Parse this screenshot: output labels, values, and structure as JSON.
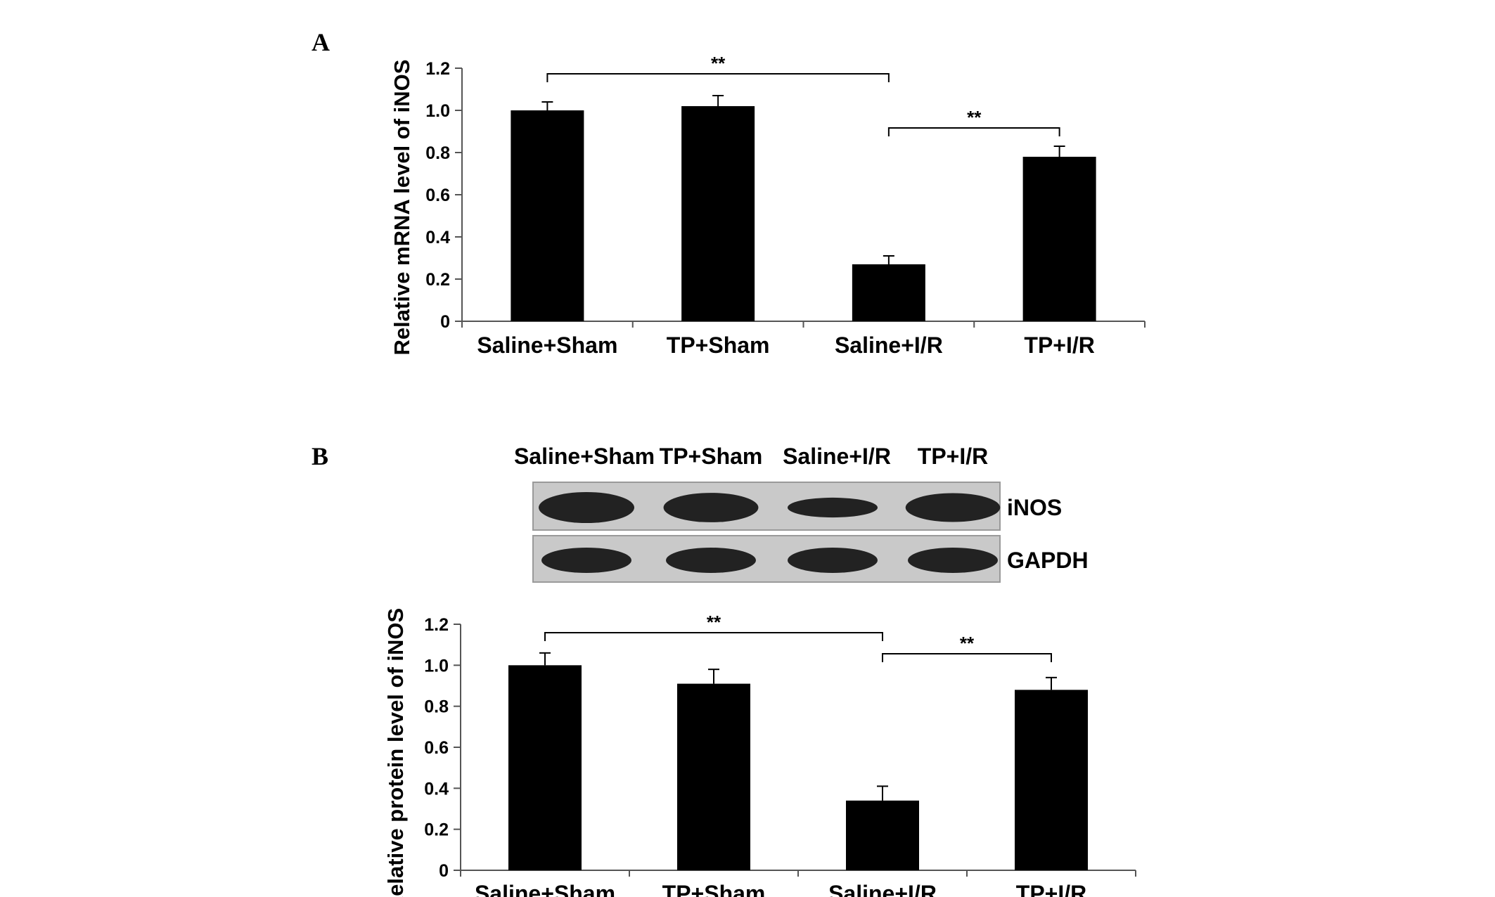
{
  "chart_data": [
    {
      "panel": "A",
      "type": "bar",
      "ylabel": "Relative mRNA level of iNOS",
      "xlabel": "",
      "ylim": [
        0,
        1.2
      ],
      "yticks": [
        "0",
        "0.2",
        "0.4",
        "0.6",
        "0.8",
        "1.0",
        "1.2"
      ],
      "categories": [
        "Saline+Sham",
        "TP+Sham",
        "Saline+I/R",
        "TP+I/R"
      ],
      "values": [
        1.0,
        1.02,
        0.27,
        0.78
      ],
      "errors": [
        0.04,
        0.05,
        0.04,
        0.05
      ],
      "bar_color": "#000000",
      "grid": false,
      "significance": [
        {
          "from": 0,
          "to": 2,
          "label": "**"
        },
        {
          "from": 2,
          "to": 3,
          "label": "**"
        }
      ]
    },
    {
      "panel": "B",
      "type": "bar",
      "ylabel": "Relative protein level of iNOS",
      "xlabel": "",
      "ylim": [
        0,
        1.2
      ],
      "yticks": [
        "0",
        "0.2",
        "0.4",
        "0.6",
        "0.8",
        "1.0",
        "1.2"
      ],
      "categories": [
        "Saline+Sham",
        "TP+Sham",
        "Saline+I/R",
        "TP+I/R"
      ],
      "values": [
        1.0,
        0.91,
        0.34,
        0.88
      ],
      "errors": [
        0.06,
        0.07,
        0.07,
        0.06
      ],
      "bar_color": "#000000",
      "grid": false,
      "significance": [
        {
          "from": 0,
          "to": 2,
          "label": "**"
        },
        {
          "from": 2,
          "to": 3,
          "label": "**"
        }
      ]
    }
  ],
  "western_blot": {
    "lanes": [
      "Saline+Sham",
      "TP+Sham",
      "Saline+I/R",
      "TP+I/R"
    ],
    "rows": [
      {
        "name": "iNOS",
        "intensity": [
          1.0,
          0.91,
          0.34,
          0.88
        ]
      },
      {
        "name": "GAPDH",
        "intensity": [
          1.0,
          1.0,
          1.0,
          1.0
        ]
      }
    ]
  }
}
